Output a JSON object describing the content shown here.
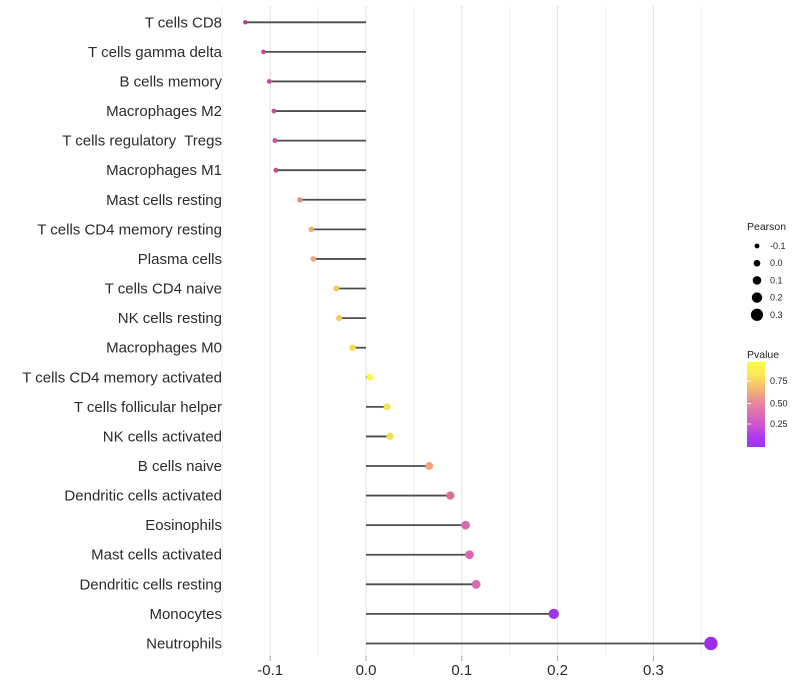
{
  "chart_data": {
    "type": "scatter",
    "variant": "lollipop",
    "orientation": "horizontal",
    "title": "",
    "xlabel": "",
    "ylabel": "",
    "background": "#ffffff",
    "segment_color": "#4d4d4d",
    "grid": {
      "show": true,
      "step": 0.05,
      "major_color": "#e4e4e4",
      "minor_color": "#efefef"
    },
    "xlim": [
      -0.155,
      0.375
    ],
    "x_ticks": [
      -0.1,
      0.0,
      0.1,
      0.2,
      0.3
    ],
    "x_tick_labels": [
      "-0.1",
      "0.0",
      "0.1",
      "0.2",
      "0.3"
    ],
    "points": [
      {
        "label": "T cells CD8",
        "pearson": -0.126,
        "color": "#bb3c8c"
      },
      {
        "label": "T cells gamma delta",
        "pearson": -0.107,
        "color": "#c84898"
      },
      {
        "label": "B cells memory",
        "pearson": -0.101,
        "color": "#cc4f9b"
      },
      {
        "label": "Macrophages M2",
        "pearson": -0.096,
        "color": "#ca4d99"
      },
      {
        "label": "T cells regulatory  Tregs",
        "pearson": -0.095,
        "color": "#cb4e9a"
      },
      {
        "label": "Macrophages M1",
        "pearson": -0.094,
        "color": "#c54596"
      },
      {
        "label": "Mast cells resting",
        "pearson": -0.069,
        "color": "#e68c77"
      },
      {
        "label": "T cells CD4 memory resting",
        "pearson": -0.057,
        "color": "#f0ac6e"
      },
      {
        "label": "Plasma cells",
        "pearson": -0.055,
        "color": "#eea876"
      },
      {
        "label": "T cells CD4 naive",
        "pearson": -0.031,
        "color": "#f3c75e"
      },
      {
        "label": "NK cells resting",
        "pearson": -0.028,
        "color": "#f4ca5a"
      },
      {
        "label": "Macrophages M0",
        "pearson": -0.014,
        "color": "#f6db4e"
      },
      {
        "label": "T cells CD4 memory activated",
        "pearson": 0.004,
        "color": "#fdf840"
      },
      {
        "label": "T cells follicular helper",
        "pearson": 0.022,
        "color": "#f8e24b"
      },
      {
        "label": "NK cells activated",
        "pearson": 0.025,
        "color": "#f7de4d"
      },
      {
        "label": "B cells naive",
        "pearson": 0.066,
        "color": "#efa477"
      },
      {
        "label": "Dendritic cells activated",
        "pearson": 0.088,
        "color": "#db7394"
      },
      {
        "label": "Eosinophils",
        "pearson": 0.104,
        "color": "#d868ac"
      },
      {
        "label": "Mast cells activated",
        "pearson": 0.108,
        "color": "#d868ae"
      },
      {
        "label": "Dendritic cells resting",
        "pearson": 0.115,
        "color": "#d46cb6"
      },
      {
        "label": "Monocytes",
        "pearson": 0.196,
        "color": "#9c38e3"
      },
      {
        "label": "Neutrophils",
        "pearson": 0.36,
        "color": "#9b2cea"
      }
    ],
    "legend": {
      "size": {
        "title": "Pearson",
        "values": [
          -0.1,
          0.0,
          0.1,
          0.2,
          0.3
        ],
        "labels": [
          "-0.1",
          "0.0",
          "0.1",
          "0.2",
          "0.3"
        ],
        "dot_color": "#000000"
      },
      "color": {
        "title": "Pvalue",
        "tick_labels": [
          "0.75",
          "0.50",
          "0.25"
        ],
        "gradient_stops": [
          {
            "offset": 0,
            "color": "#fcfe3e"
          },
          {
            "offset": 15,
            "color": "#fae75b"
          },
          {
            "offset": 30,
            "color": "#f4bc6e"
          },
          {
            "offset": 45,
            "color": "#ea8f93"
          },
          {
            "offset": 60,
            "color": "#df6fb4"
          },
          {
            "offset": 75,
            "color": "#cc53d0"
          },
          {
            "offset": 88,
            "color": "#ac3bef"
          },
          {
            "offset": 100,
            "color": "#a132f5"
          }
        ]
      }
    }
  }
}
